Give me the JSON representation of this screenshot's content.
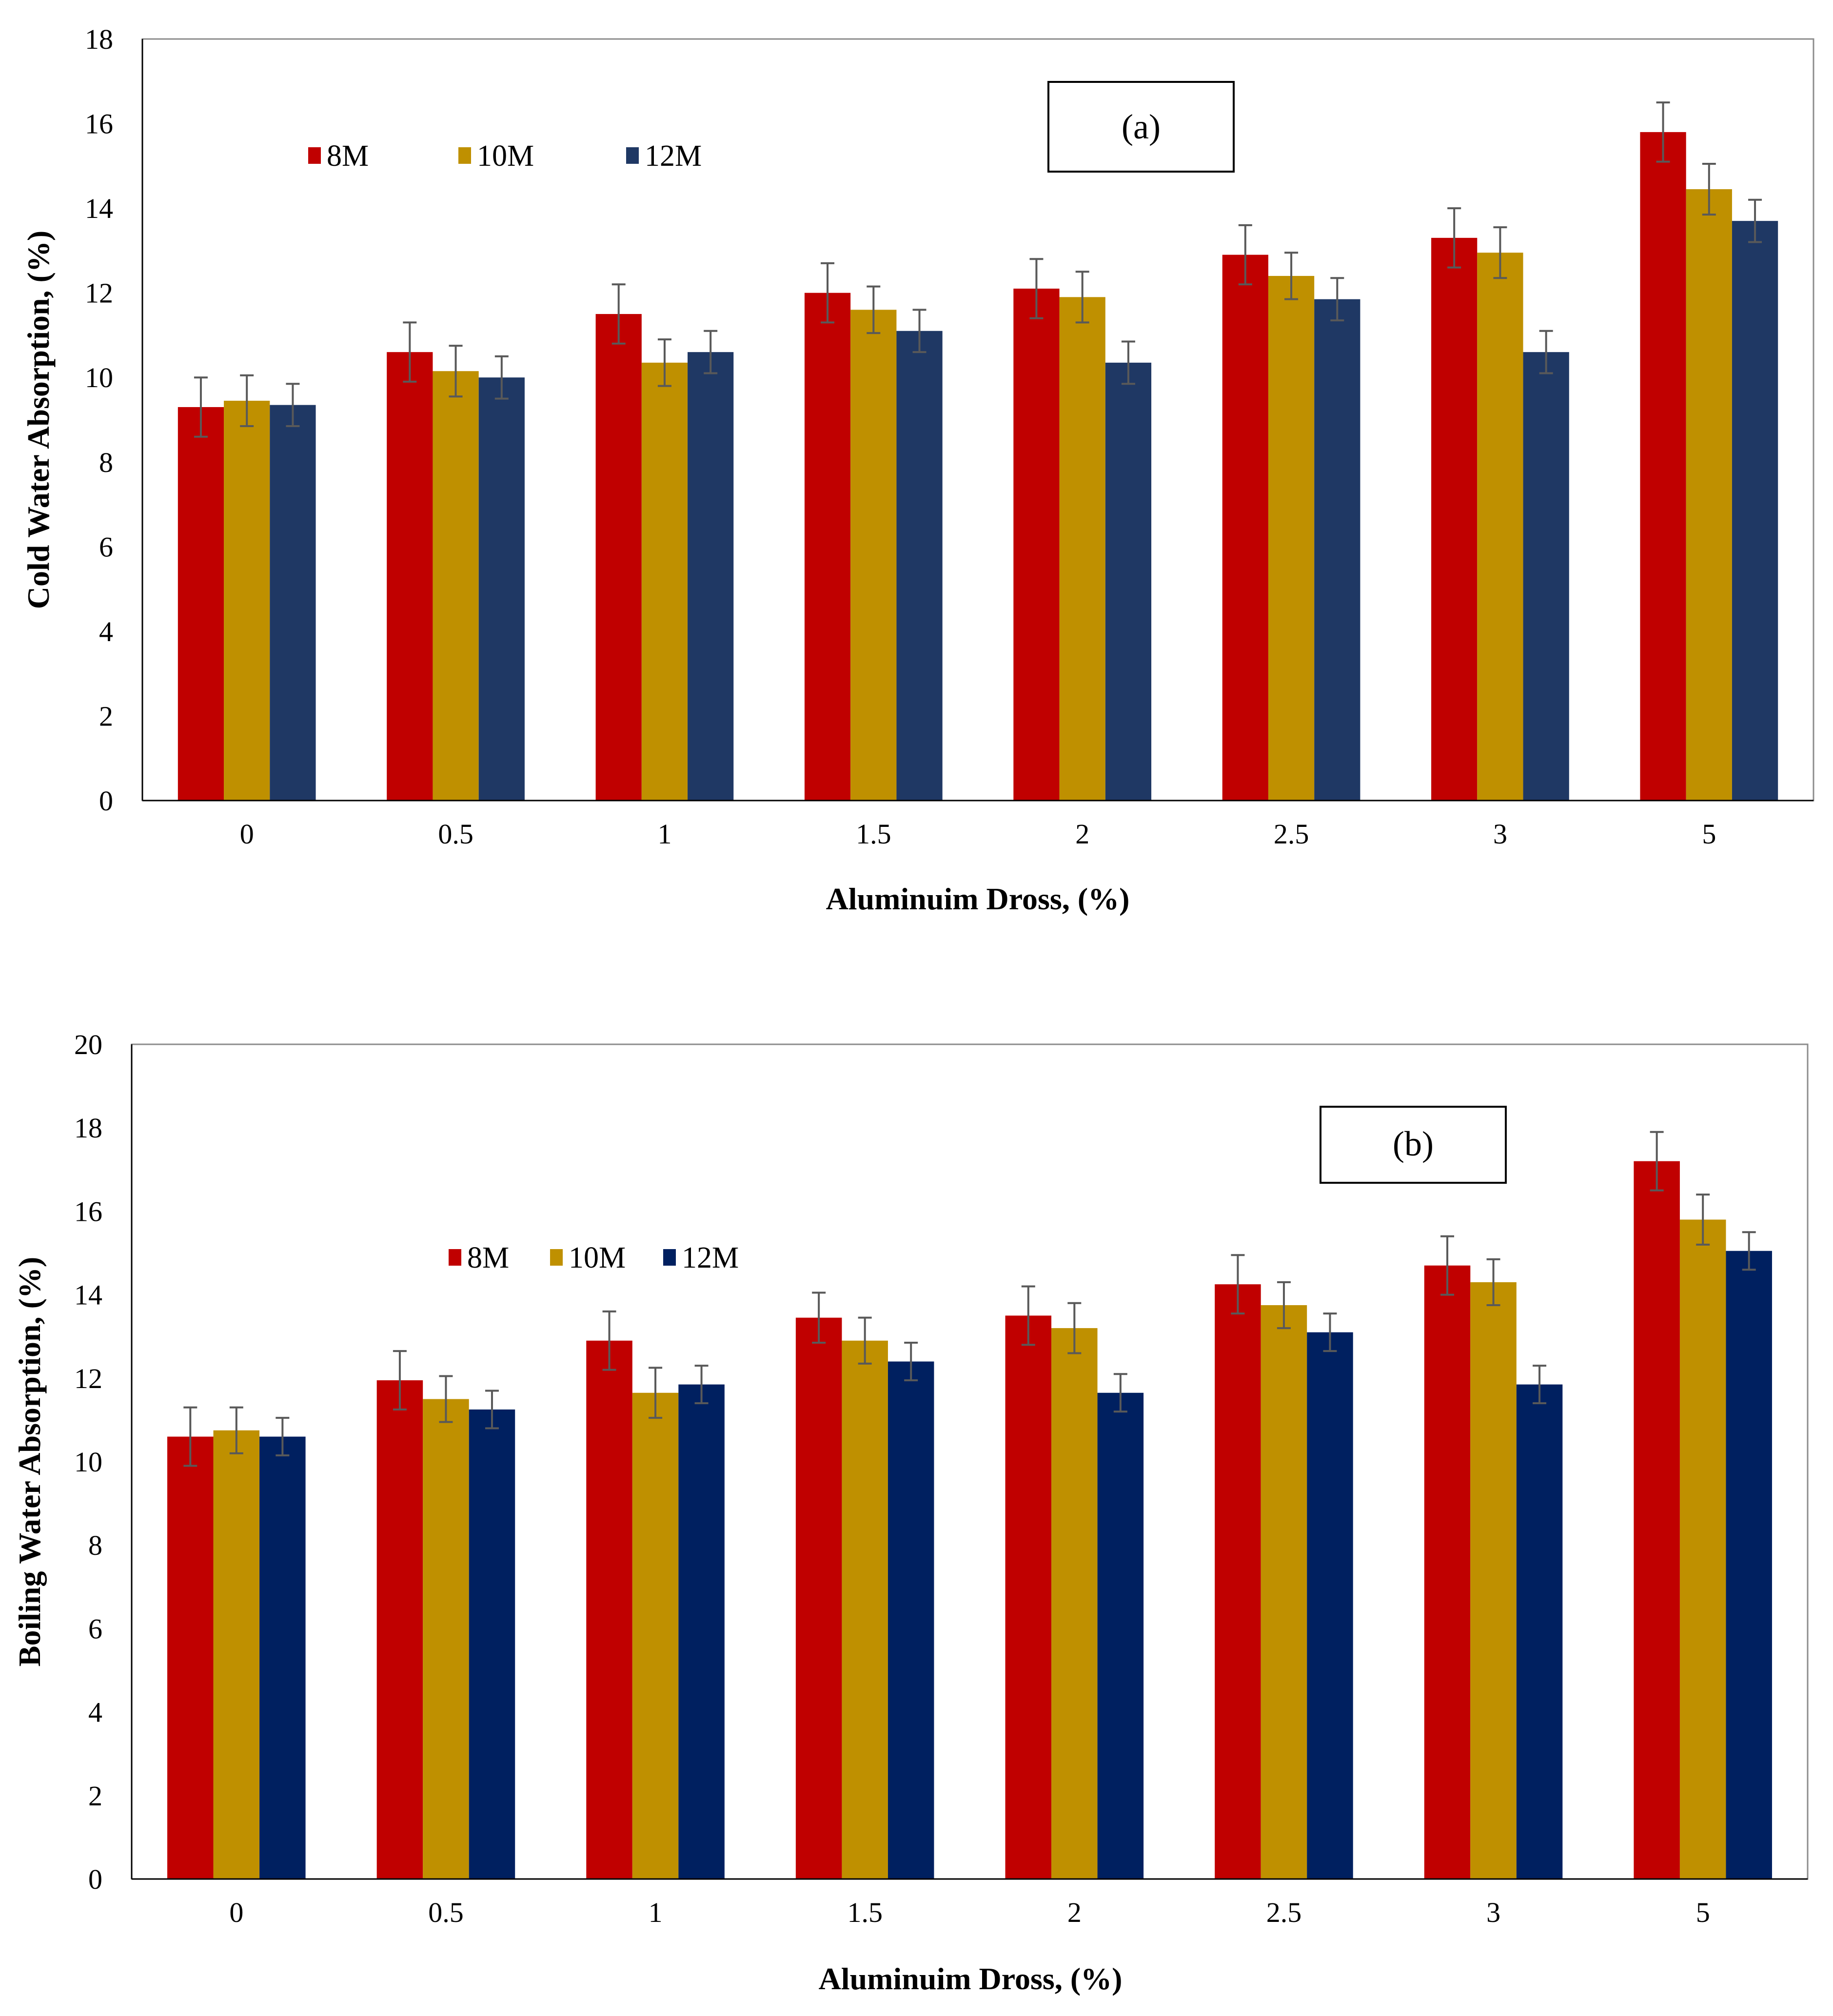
{
  "colors": {
    "series_a": [
      "#C00000",
      "#BF9000",
      "#1F3864"
    ],
    "series_b": [
      "#C00000",
      "#BF9000",
      "#002060"
    ],
    "error_bar": "#595959",
    "axis": "#000000"
  },
  "chart_data": [
    {
      "type": "bar",
      "panel_label": "(a)",
      "xlabel": "Aluminuim Dross, (%)",
      "ylabel": "Cold Water Absorption, (%)",
      "categories": [
        "0",
        "0.5",
        "1",
        "1.5",
        "2",
        "2.5",
        "3",
        "5"
      ],
      "ylim": [
        0,
        18
      ],
      "yticks": [
        "0",
        "2",
        "4",
        "6",
        "8",
        "10",
        "12",
        "14",
        "16",
        "18"
      ],
      "grid": false,
      "legend_position": "top-left",
      "series": [
        {
          "name": "8M",
          "values": [
            9.3,
            10.6,
            11.5,
            12.0,
            12.1,
            12.9,
            13.3,
            15.8
          ],
          "errors": [
            0.7,
            0.7,
            0.7,
            0.7,
            0.7,
            0.7,
            0.7,
            0.7
          ]
        },
        {
          "name": "10M",
          "values": [
            9.45,
            10.15,
            10.35,
            11.6,
            11.9,
            12.4,
            12.95,
            14.45
          ],
          "errors": [
            0.6,
            0.6,
            0.55,
            0.55,
            0.6,
            0.55,
            0.6,
            0.6
          ]
        },
        {
          "name": "12M",
          "values": [
            9.35,
            10.0,
            10.6,
            11.1,
            10.35,
            11.85,
            10.6,
            13.7
          ],
          "errors": [
            0.5,
            0.5,
            0.5,
            0.5,
            0.5,
            0.5,
            0.5,
            0.5
          ]
        }
      ]
    },
    {
      "type": "bar",
      "panel_label": "(b)",
      "xlabel": "Aluminuim Dross, (%)",
      "ylabel": "Boiling Water Absorption, (%)",
      "categories": [
        "0",
        "0.5",
        "1",
        "1.5",
        "2",
        "2.5",
        "3",
        "5"
      ],
      "ylim": [
        0,
        20
      ],
      "yticks": [
        "0",
        "2",
        "4",
        "6",
        "8",
        "10",
        "12",
        "14",
        "16",
        "18",
        "20"
      ],
      "grid": false,
      "legend_position": "top-left",
      "series": [
        {
          "name": "8M",
          "values": [
            10.6,
            11.95,
            12.9,
            13.45,
            13.5,
            14.25,
            14.7,
            17.2
          ],
          "errors": [
            0.7,
            0.7,
            0.7,
            0.6,
            0.7,
            0.7,
            0.7,
            0.7
          ]
        },
        {
          "name": "10M",
          "values": [
            10.75,
            11.5,
            11.65,
            12.9,
            13.2,
            13.75,
            14.3,
            15.8
          ],
          "errors": [
            0.55,
            0.55,
            0.6,
            0.55,
            0.6,
            0.55,
            0.55,
            0.6
          ]
        },
        {
          "name": "12M",
          "values": [
            10.6,
            11.25,
            11.85,
            12.4,
            11.65,
            13.1,
            11.85,
            15.05
          ],
          "errors": [
            0.45,
            0.45,
            0.45,
            0.45,
            0.45,
            0.45,
            0.45,
            0.45
          ]
        }
      ]
    }
  ]
}
